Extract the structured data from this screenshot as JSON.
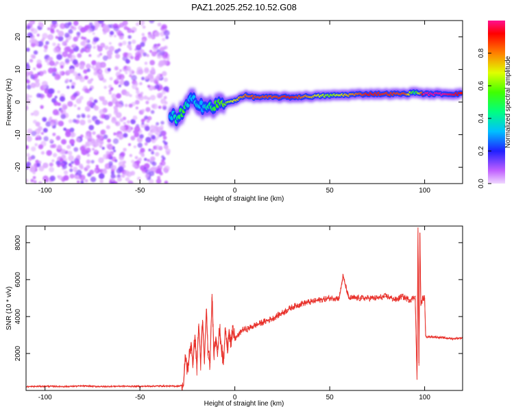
{
  "title": "PAZ1.2025.252.10.52.G08",
  "chart_data": [
    {
      "type": "heatmap",
      "name": "spectrogram",
      "xlabel": "Height of straight line (km)",
      "ylabel": "Frequency (Hz)",
      "xlim": [
        -110,
        120
      ],
      "ylim": [
        -25,
        25
      ],
      "xticks": [
        "-100",
        "-50",
        "0",
        "50",
        "100"
      ],
      "xtick_values": [
        -100,
        -50,
        0,
        50,
        100
      ],
      "yticks": [
        "-20",
        "-10",
        "0",
        "10",
        "20"
      ],
      "ytick_values": [
        -20,
        -10,
        0,
        10,
        20
      ],
      "noise_region": {
        "x_from": -110,
        "x_to": -35,
        "y_from": -25,
        "y_to": 25,
        "amplitude": 0.15
      },
      "ridge": [
        {
          "x": -34,
          "f": -5,
          "a": 0.3
        },
        {
          "x": -30,
          "f": -4.5,
          "a": 0.45
        },
        {
          "x": -27,
          "f": -3,
          "a": 0.55
        },
        {
          "x": -24,
          "f": 0,
          "a": 0.3
        },
        {
          "x": -20,
          "f": 0.5,
          "a": 0.35
        },
        {
          "x": -17,
          "f": -1,
          "a": 0.3
        },
        {
          "x": -13,
          "f": -2,
          "a": 0.45
        },
        {
          "x": -10,
          "f": -1,
          "a": 0.55
        },
        {
          "x": -5,
          "f": -0.5,
          "a": 0.6
        },
        {
          "x": 0,
          "f": 0.5,
          "a": 0.7
        },
        {
          "x": 5,
          "f": 2,
          "a": 0.8
        },
        {
          "x": 10,
          "f": 1.5,
          "a": 0.85
        },
        {
          "x": 20,
          "f": 1.5,
          "a": 0.85
        },
        {
          "x": 30,
          "f": 1.5,
          "a": 0.9
        },
        {
          "x": 50,
          "f": 2,
          "a": 0.6
        },
        {
          "x": 70,
          "f": 2.5,
          "a": 0.9
        },
        {
          "x": 90,
          "f": 2.5,
          "a": 0.85
        },
        {
          "x": 95,
          "f": 3,
          "a": 0.45
        },
        {
          "x": 100,
          "f": 2.5,
          "a": 1.0
        },
        {
          "x": 110,
          "f": 2.5,
          "a": 1.0
        },
        {
          "x": 120,
          "f": 2.5,
          "a": 0.9
        }
      ],
      "colorbar": {
        "label": "Normalized spectral amplitude",
        "ticks": [
          "0.0",
          "0.2",
          "0.4",
          "0.6",
          "0.8"
        ],
        "tick_values": [
          0.0,
          0.2,
          0.4,
          0.6,
          0.8
        ],
        "range": [
          0,
          1
        ]
      }
    },
    {
      "type": "line",
      "name": "snr",
      "xlabel": "Height of straight line (km)",
      "ylabel": "SNR (10 * v/v)",
      "xlim": [
        -110,
        120
      ],
      "ylim": [
        0,
        8900
      ],
      "xticks": [
        "-100",
        "-50",
        "0",
        "50",
        "100"
      ],
      "xtick_values": [
        -100,
        -50,
        0,
        50,
        100
      ],
      "yticks": [
        "2000",
        "4000",
        "6000",
        "8000"
      ],
      "ytick_values": [
        2000,
        4000,
        6000,
        8000
      ],
      "color": "#e8302a",
      "series": [
        {
          "name": "SNR",
          "x": [
            -110,
            -100,
            -90,
            -80,
            -70,
            -60,
            -50,
            -40,
            -30,
            -27,
            -26,
            -25,
            -24,
            -23,
            -22,
            -21,
            -20,
            -19,
            -18,
            -17,
            -16,
            -15,
            -14,
            -13,
            -12,
            -11,
            -10,
            -9,
            -8,
            -7,
            -6,
            -5,
            -4,
            -3,
            -2,
            -1,
            0,
            2,
            4,
            6,
            8,
            10,
            15,
            20,
            25,
            30,
            35,
            40,
            45,
            50,
            55,
            57,
            60,
            65,
            70,
            75,
            80,
            85,
            88,
            90,
            92,
            94,
            95,
            96,
            96.5,
            97,
            97.5,
            98,
            99,
            100,
            100.5,
            101,
            105,
            110,
            115,
            120
          ],
          "y": [
            200,
            230,
            210,
            240,
            210,
            230,
            220,
            240,
            230,
            300,
            1900,
            1100,
            1800,
            2600,
            1400,
            3000,
            1200,
            3600,
            1500,
            3800,
            1500,
            4400,
            1800,
            1500,
            5200,
            2000,
            2900,
            2200,
            3300,
            2300,
            1400,
            3400,
            2200,
            3300,
            2500,
            3200,
            2800,
            3000,
            3300,
            3300,
            3400,
            3500,
            3700,
            3900,
            4200,
            4500,
            4700,
            4800,
            4900,
            5000,
            5000,
            6200,
            5000,
            5000,
            5000,
            5000,
            5100,
            4900,
            5100,
            5000,
            4900,
            5000,
            5100,
            600,
            8800,
            1500,
            8500,
            4600,
            5000,
            5000,
            3000,
            2900,
            2900,
            2850,
            2800,
            2850
          ]
        }
      ]
    }
  ]
}
